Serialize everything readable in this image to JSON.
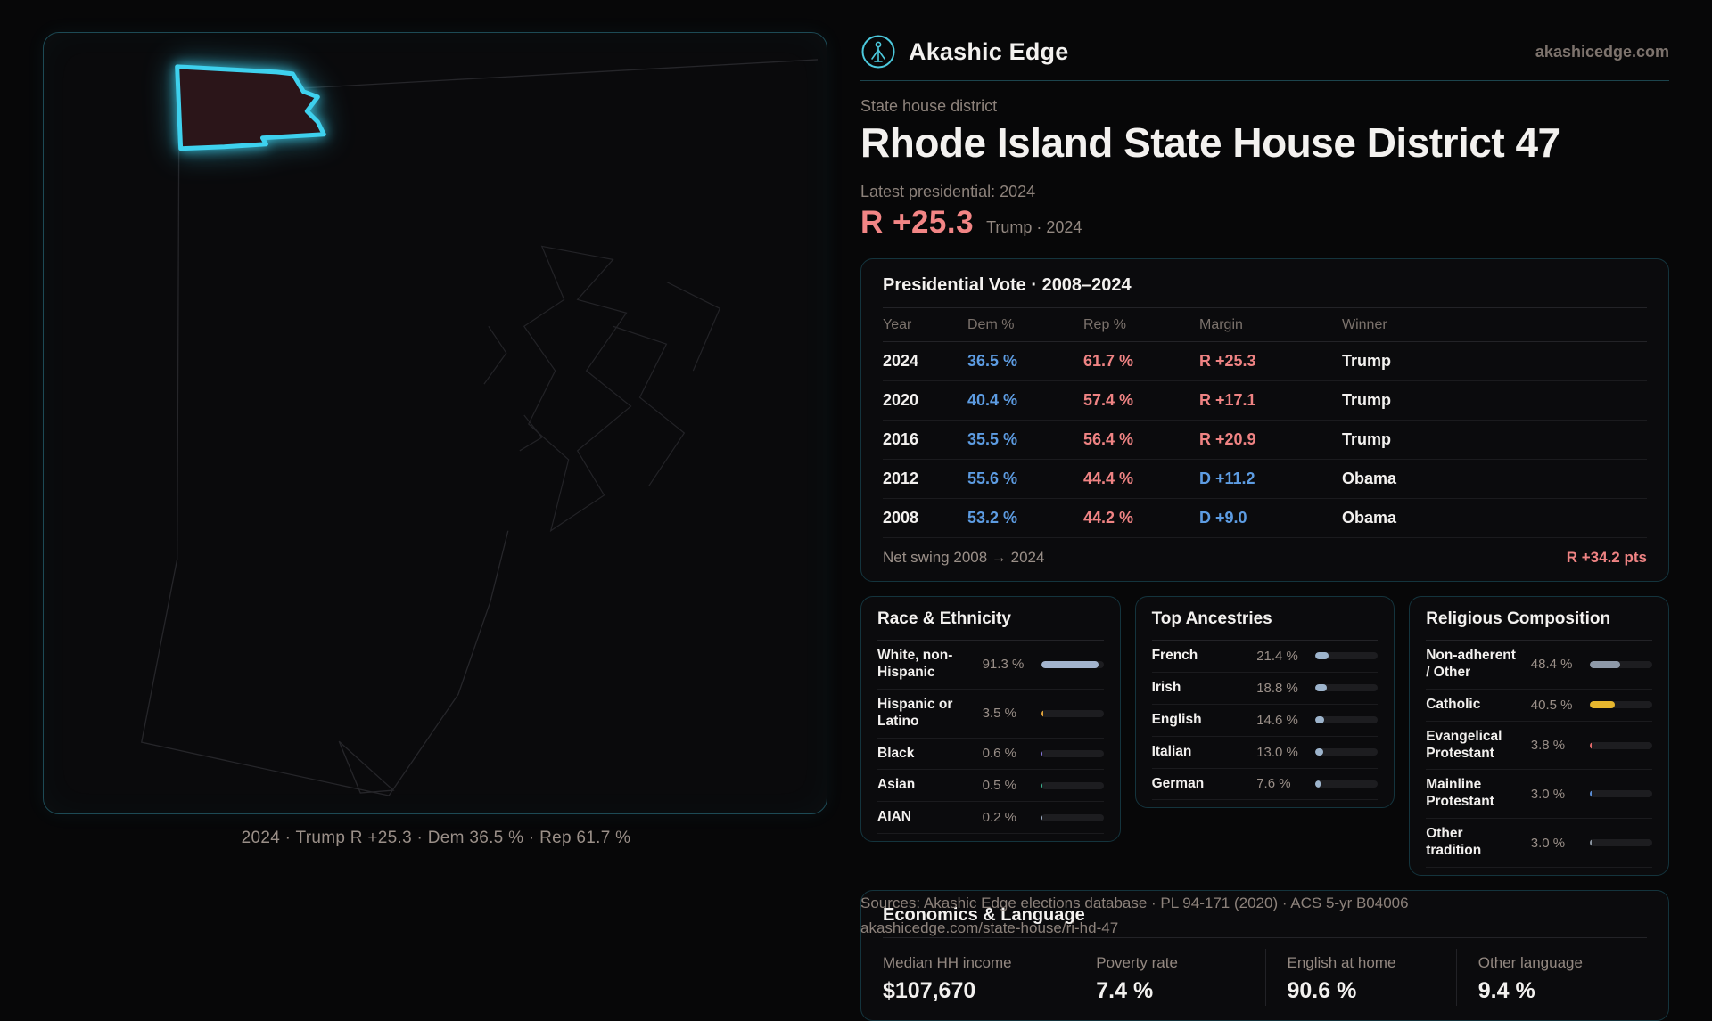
{
  "brand": {
    "name": "Akashic Edge",
    "domain": "akashicedge.com"
  },
  "hero": {
    "kicker": "State house district",
    "title": "Rhode Island State House District 47",
    "latest_label": "Latest presidential: 2024",
    "margin": "R +25.3",
    "margin_context": "Trump · 2024"
  },
  "map": {
    "caption": "2024 · Trump R +25.3 · Dem 36.5 % · Rep 61.7 %",
    "highlight_color": "#3ed1ee"
  },
  "vote_table": {
    "title": "Presidential Vote · 2008–2024",
    "columns": [
      "Year",
      "Dem %",
      "Rep %",
      "Margin",
      "Winner"
    ],
    "rows": [
      {
        "year": "2024",
        "dem": "36.5 %",
        "rep": "61.7 %",
        "margin": "R +25.3",
        "margin_party": "R",
        "winner": "Trump"
      },
      {
        "year": "2020",
        "dem": "40.4 %",
        "rep": "57.4 %",
        "margin": "R +17.1",
        "margin_party": "R",
        "winner": "Trump"
      },
      {
        "year": "2016",
        "dem": "35.5 %",
        "rep": "56.4 %",
        "margin": "R +20.9",
        "margin_party": "R",
        "winner": "Trump"
      },
      {
        "year": "2012",
        "dem": "55.6 %",
        "rep": "44.4 %",
        "margin": "D +11.2",
        "margin_party": "D",
        "winner": "Obama"
      },
      {
        "year": "2008",
        "dem": "53.2 %",
        "rep": "44.2 %",
        "margin": "D +9.0",
        "margin_party": "D",
        "winner": "Obama"
      }
    ],
    "net_swing_label": "Net swing 2008 → 2024",
    "net_swing_value": "R +34.2 pts"
  },
  "demographics": {
    "race": {
      "title": "Race & Ethnicity",
      "rows": [
        {
          "label": "White, non-Hispanic",
          "value": "91.3 %",
          "pct": 91.3,
          "color": "#a3b4cd"
        },
        {
          "label": "Hispanic or Latino",
          "value": "3.5 %",
          "pct": 3.5,
          "color": "#e2a43c"
        },
        {
          "label": "Black",
          "value": "0.6 %",
          "pct": 0.6,
          "color": "#8f7ee8"
        },
        {
          "label": "Asian",
          "value": "0.5 %",
          "pct": 0.5,
          "color": "#3fbf9a"
        },
        {
          "label": "AIAN",
          "value": "0.2 %",
          "pct": 0.2,
          "color": "#a3b4cd"
        }
      ]
    },
    "ancestries": {
      "title": "Top Ancestries",
      "rows": [
        {
          "label": "French",
          "value": "21.4 %",
          "pct": 21.4,
          "color": "#9db4cc"
        },
        {
          "label": "Irish",
          "value": "18.8 %",
          "pct": 18.8,
          "color": "#9db4cc"
        },
        {
          "label": "English",
          "value": "14.6 %",
          "pct": 14.6,
          "color": "#9db4cc"
        },
        {
          "label": "Italian",
          "value": "13.0 %",
          "pct": 13.0,
          "color": "#9db4cc"
        },
        {
          "label": "German",
          "value": "7.6 %",
          "pct": 7.6,
          "color": "#9db4cc"
        }
      ]
    },
    "religion": {
      "title": "Religious Composition",
      "rows": [
        {
          "label": "Non-adherent / Other",
          "value": "48.4 %",
          "pct": 48.4,
          "color": "#8e99a8"
        },
        {
          "label": "Catholic",
          "value": "40.5 %",
          "pct": 40.5,
          "color": "#e7b72e"
        },
        {
          "label": "Evangelical Protestant",
          "value": "3.8 %",
          "pct": 3.8,
          "color": "#e46a6a"
        },
        {
          "label": "Mainline Protestant",
          "value": "3.0 %",
          "pct": 3.0,
          "color": "#5b8fd8"
        },
        {
          "label": "Other tradition",
          "value": "3.0 %",
          "pct": 3.0,
          "color": "#8a94a0"
        }
      ]
    }
  },
  "economics": {
    "title": "Economics & Language",
    "stats": [
      {
        "label": "Median HH income",
        "value": "$107,670"
      },
      {
        "label": "Poverty rate",
        "value": "7.4 %"
      },
      {
        "label": "English at home",
        "value": "90.6 %"
      },
      {
        "label": "Other language",
        "value": "9.4 %"
      }
    ]
  },
  "sources": {
    "line1": "Sources: Akashic Edge elections database · PL 94-171 (2020) · ACS 5-yr B04006",
    "line2": "akashicedge.com/state-house/ri-hd-47"
  }
}
